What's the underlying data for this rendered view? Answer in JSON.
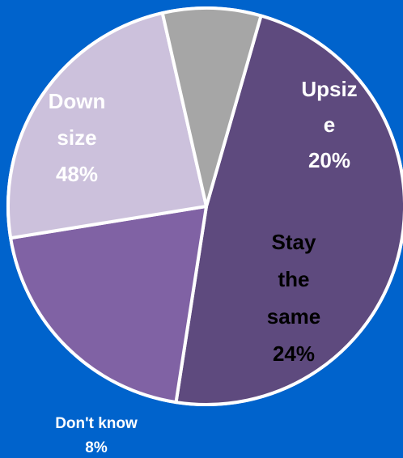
{
  "chart_data": {
    "type": "pie",
    "title": "",
    "slices": [
      {
        "label_lines": [
          "Down",
          "size",
          "48%"
        ],
        "value": 48,
        "color": "#5e4a7e",
        "label_color": "#ffffff"
      },
      {
        "label_lines": [
          "Upsiz",
          "e",
          "20%"
        ],
        "value": 20,
        "color": "#8062a4",
        "label_color": "#ffffff"
      },
      {
        "label_lines": [
          "Stay",
          "the",
          "same",
          "24%"
        ],
        "value": 24,
        "color": "#ccc1dc",
        "label_color": "#000000"
      },
      {
        "label_lines": [
          "Don't know",
          "8%"
        ],
        "value": 8,
        "color": "#a6a6a6",
        "label_color": "#ffffff",
        "label_outside": true
      }
    ],
    "legend": "none",
    "colors": {
      "background": "#0063cc",
      "border": "#ffffff"
    }
  }
}
